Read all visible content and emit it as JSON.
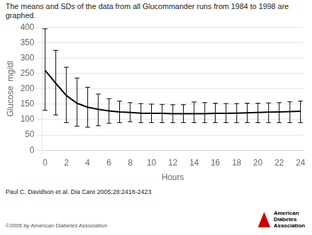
{
  "chart_data": {
    "type": "line",
    "title": "The means and SDs of the data from all Glucommander runs from 1984 to 1998 are graphed.",
    "x_label": "Hours",
    "y_label": "Glucose  mg/dl",
    "x": [
      0,
      1,
      2,
      3,
      4,
      5,
      6,
      7,
      8,
      9,
      10,
      11,
      12,
      13,
      14,
      15,
      16,
      17,
      18,
      19,
      20,
      21,
      22,
      23,
      24
    ],
    "values": [
      260,
      218,
      178,
      153,
      140,
      133,
      128,
      125,
      123,
      121,
      120,
      120,
      119,
      119,
      119,
      119,
      120,
      120,
      121,
      122,
      123,
      124,
      125,
      126,
      127
    ],
    "sd_upper": [
      395,
      325,
      270,
      235,
      205,
      183,
      168,
      160,
      155,
      152,
      150,
      149,
      148,
      148,
      157,
      155,
      153,
      152,
      152,
      153,
      153,
      154,
      155,
      158,
      160
    ],
    "sd_lower": [
      130,
      115,
      90,
      78,
      75,
      80,
      88,
      90,
      93,
      90,
      90,
      90,
      90,
      90,
      90,
      90,
      90,
      90,
      90,
      90,
      90,
      90,
      90,
      90,
      90
    ],
    "color": "#000000",
    "xlim": [
      -0.3,
      24.3
    ],
    "xticks": [
      0,
      2,
      4,
      6,
      8,
      10,
      12,
      14,
      16,
      18,
      20,
      22,
      24
    ],
    "ylim": [
      0,
      400
    ],
    "yticks": [
      0,
      50,
      100,
      150,
      200,
      250,
      300,
      350,
      400
    ],
    "grid": "y",
    "annotations": [
      "Paul C. Davidson et al. Dia Care 2005;28:2418-2423",
      "©2005 by American Diabetes Association",
      "American",
      "Diabetes",
      "Association"
    ]
  }
}
